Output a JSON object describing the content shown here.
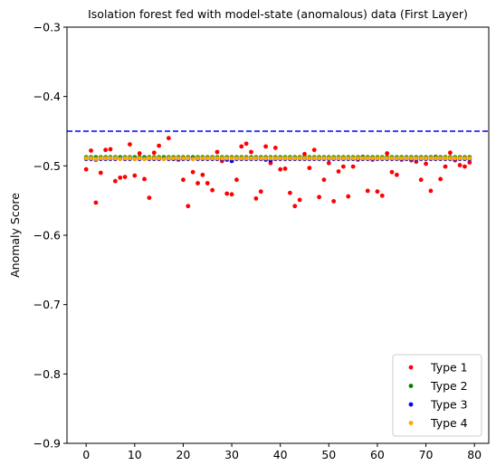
{
  "chart_data": {
    "type": "scatter",
    "title": "Isolation forest fed with model-state (anomalous) data (First Layer)",
    "xlabel": "",
    "ylabel": "Anomaly Score",
    "xlim": [
      -3.95,
      82.95
    ],
    "ylim": [
      -0.9,
      -0.3
    ],
    "xticks": [
      0,
      10,
      20,
      30,
      40,
      50,
      60,
      70,
      80
    ],
    "yticks": [
      -0.9,
      -0.8,
      -0.7,
      -0.6,
      -0.5,
      -0.4,
      -0.3
    ],
    "grid": false,
    "legend_position": "lower-right",
    "threshold": {
      "y": -0.45,
      "color": "#0000ff",
      "style": "dashed"
    },
    "series": [
      {
        "name": "Type 1",
        "color": "#ff0000",
        "x": [
          0,
          1,
          2,
          3,
          4,
          5,
          6,
          7,
          8,
          9,
          10,
          11,
          12,
          13,
          14,
          15,
          16,
          17,
          18,
          19,
          20,
          21,
          22,
          23,
          24,
          25,
          26,
          27,
          28,
          29,
          30,
          31,
          32,
          33,
          34,
          35,
          36,
          37,
          38,
          39,
          40,
          41,
          42,
          43,
          44,
          45,
          46,
          47,
          48,
          49,
          50,
          51,
          52,
          53,
          54,
          55,
          56,
          57,
          58,
          59,
          60,
          61,
          62,
          63,
          64,
          65,
          66,
          67,
          68,
          69,
          70,
          71,
          72,
          73,
          74,
          75,
          76,
          77,
          78,
          79
        ],
        "y": [
          -0.505,
          -0.478,
          -0.553,
          -0.51,
          -0.477,
          -0.476,
          -0.522,
          -0.517,
          -0.516,
          -0.469,
          -0.514,
          -0.482,
          -0.519,
          -0.546,
          -0.481,
          -0.471,
          -0.489,
          -0.46,
          -0.49,
          -0.491,
          -0.52,
          -0.558,
          -0.509,
          -0.525,
          -0.513,
          -0.525,
          -0.535,
          -0.48,
          -0.493,
          -0.54,
          -0.541,
          -0.52,
          -0.472,
          -0.468,
          -0.48,
          -0.547,
          -0.537,
          -0.472,
          -0.496,
          -0.474,
          -0.505,
          -0.504,
          -0.539,
          -0.558,
          -0.549,
          -0.483,
          -0.503,
          -0.477,
          -0.545,
          -0.52,
          -0.496,
          -0.551,
          -0.508,
          -0.501,
          -0.544,
          -0.501,
          -0.491,
          -0.487,
          -0.536,
          -0.491,
          -0.537,
          -0.543,
          -0.482,
          -0.509,
          -0.513,
          -0.491,
          -0.49,
          -0.492,
          -0.494,
          -0.52,
          -0.497,
          -0.536,
          -0.487,
          -0.519,
          -0.501,
          -0.481,
          -0.492,
          -0.499,
          -0.501,
          -0.495
        ]
      },
      {
        "name": "Type 2",
        "color": "#008000",
        "x": [
          0,
          1,
          2,
          3,
          4,
          5,
          6,
          7,
          8,
          9,
          10,
          11,
          12,
          13,
          14,
          15,
          16,
          17,
          18,
          19,
          20,
          21,
          22,
          23,
          24,
          25,
          26,
          27,
          28,
          29,
          30,
          31,
          32,
          33,
          34,
          35,
          36,
          37,
          38,
          39,
          40,
          41,
          42,
          43,
          44,
          45,
          46,
          47,
          48,
          49,
          50,
          51,
          52,
          53,
          54,
          55,
          56,
          57,
          58,
          59,
          60,
          61,
          62,
          63,
          64,
          65,
          66,
          67,
          68,
          69,
          70,
          71,
          72,
          73,
          74,
          75,
          76,
          77,
          78,
          79
        ],
        "y": [
          -0.4875,
          -0.4875,
          -0.4875,
          -0.4875,
          -0.4875,
          -0.4875,
          -0.4875,
          -0.4875,
          -0.4875,
          -0.4875,
          -0.4875,
          -0.4875,
          -0.4875,
          -0.4875,
          -0.4875,
          -0.4875,
          -0.4875,
          -0.4875,
          -0.4875,
          -0.4875,
          -0.4875,
          -0.4875,
          -0.4875,
          -0.4875,
          -0.4875,
          -0.4875,
          -0.4875,
          -0.4875,
          -0.4875,
          -0.4875,
          -0.4875,
          -0.4875,
          -0.4875,
          -0.4875,
          -0.4875,
          -0.4875,
          -0.4875,
          -0.4875,
          -0.4875,
          -0.4875,
          -0.4875,
          -0.4875,
          -0.4875,
          -0.4875,
          -0.4875,
          -0.4875,
          -0.4875,
          -0.4875,
          -0.4875,
          -0.4875,
          -0.4875,
          -0.4875,
          -0.4875,
          -0.4875,
          -0.4875,
          -0.4875,
          -0.4875,
          -0.4875,
          -0.4875,
          -0.4875,
          -0.4875,
          -0.4875,
          -0.4875,
          -0.4875,
          -0.4875,
          -0.4875,
          -0.4875,
          -0.4875,
          -0.4875,
          -0.4875,
          -0.4875,
          -0.4875,
          -0.4875,
          -0.4875,
          -0.4875,
          -0.4875,
          -0.4875,
          -0.4875,
          -0.4875,
          -0.4875
        ]
      },
      {
        "name": "Type 3",
        "color": "#0000ff",
        "x": [
          0,
          1,
          2,
          3,
          4,
          5,
          6,
          7,
          8,
          9,
          10,
          11,
          12,
          13,
          14,
          15,
          16,
          17,
          18,
          19,
          20,
          21,
          22,
          23,
          24,
          25,
          26,
          27,
          28,
          29,
          30,
          31,
          32,
          33,
          34,
          35,
          36,
          37,
          38,
          39,
          40,
          41,
          42,
          43,
          44,
          45,
          46,
          47,
          48,
          49,
          50,
          51,
          52,
          53,
          54,
          55,
          56,
          57,
          58,
          59,
          60,
          61,
          62,
          63,
          64,
          65,
          66,
          67,
          68,
          69,
          70,
          71,
          72,
          73,
          74,
          75,
          76,
          77,
          78,
          79
        ],
        "y": [
          -0.49,
          -0.49,
          -0.491,
          -0.49,
          -0.49,
          -0.49,
          -0.49,
          -0.49,
          -0.49,
          -0.49,
          -0.49,
          -0.49,
          -0.49,
          -0.49,
          -0.49,
          -0.49,
          -0.49,
          -0.49,
          -0.49,
          -0.49,
          -0.49,
          -0.49,
          -0.49,
          -0.49,
          -0.49,
          -0.49,
          -0.49,
          -0.49,
          -0.49,
          -0.491,
          -0.493,
          -0.49,
          -0.49,
          -0.49,
          -0.49,
          -0.49,
          -0.49,
          -0.491,
          -0.492,
          -0.49,
          -0.49,
          -0.49,
          -0.49,
          -0.49,
          -0.49,
          -0.49,
          -0.49,
          -0.49,
          -0.49,
          -0.49,
          -0.49,
          -0.49,
          -0.49,
          -0.49,
          -0.49,
          -0.49,
          -0.49,
          -0.49,
          -0.49,
          -0.49,
          -0.49,
          -0.49,
          -0.49,
          -0.49,
          -0.49,
          -0.49,
          -0.49,
          -0.49,
          -0.49,
          -0.49,
          -0.49,
          -0.49,
          -0.49,
          -0.49,
          -0.49,
          -0.49,
          -0.49,
          -0.49,
          -0.49,
          -0.49
        ]
      },
      {
        "name": "Type 4",
        "color": "#ffa500",
        "x": [
          0,
          1,
          2,
          3,
          4,
          5,
          6,
          7,
          8,
          9,
          10,
          11,
          12,
          13,
          14,
          15,
          16,
          17,
          18,
          19,
          20,
          21,
          22,
          23,
          24,
          25,
          26,
          27,
          28,
          29,
          30,
          31,
          32,
          33,
          34,
          35,
          36,
          37,
          38,
          39,
          40,
          41,
          42,
          43,
          44,
          45,
          46,
          47,
          48,
          49,
          50,
          51,
          52,
          53,
          54,
          55,
          56,
          57,
          58,
          59,
          60,
          61,
          62,
          63,
          64,
          65,
          66,
          67,
          68,
          69,
          70,
          71,
          72,
          73,
          74,
          75,
          76,
          77,
          78,
          79
        ],
        "y": [
          -0.489,
          -0.489,
          -0.49,
          -0.489,
          -0.489,
          -0.489,
          -0.489,
          -0.49,
          -0.489,
          -0.489,
          -0.49,
          -0.489,
          -0.49,
          -0.489,
          -0.489,
          -0.489,
          -0.49,
          -0.489,
          -0.489,
          -0.489,
          -0.489,
          -0.489,
          -0.49,
          -0.489,
          -0.489,
          -0.489,
          -0.489,
          -0.489,
          -0.489,
          -0.489,
          -0.489,
          -0.489,
          -0.489,
          -0.489,
          -0.489,
          -0.489,
          -0.489,
          -0.489,
          -0.489,
          -0.489,
          -0.489,
          -0.489,
          -0.489,
          -0.489,
          -0.489,
          -0.489,
          -0.489,
          -0.489,
          -0.489,
          -0.489,
          -0.489,
          -0.489,
          -0.489,
          -0.489,
          -0.489,
          -0.489,
          -0.489,
          -0.489,
          -0.489,
          -0.489,
          -0.489,
          -0.489,
          -0.489,
          -0.489,
          -0.489,
          -0.489,
          -0.489,
          -0.489,
          -0.489,
          -0.489,
          -0.489,
          -0.489,
          -0.489,
          -0.489,
          -0.489,
          -0.489,
          -0.489,
          -0.489,
          -0.489,
          -0.489
        ]
      }
    ]
  }
}
